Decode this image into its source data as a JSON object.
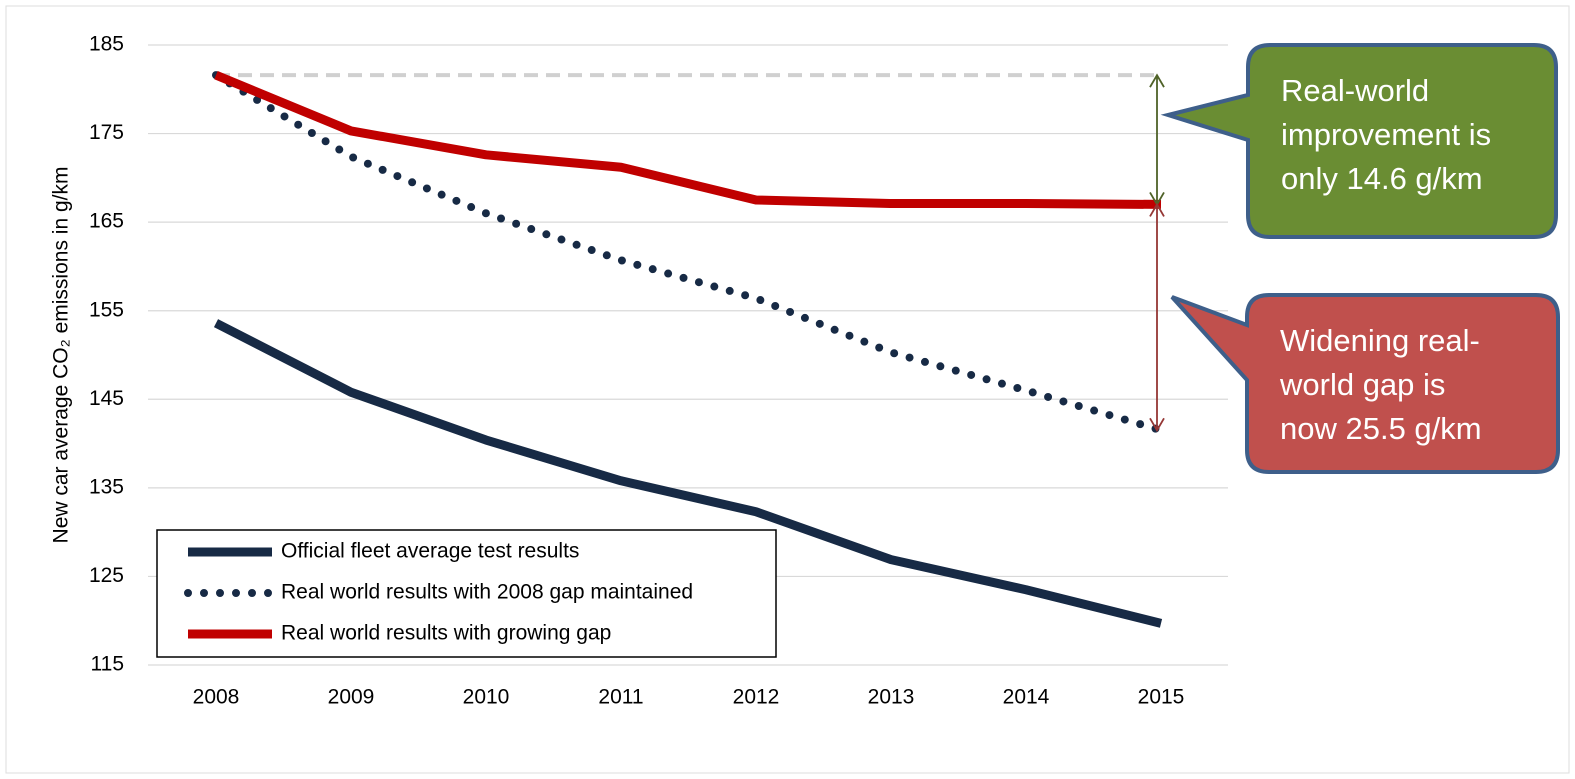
{
  "chart_data": {
    "type": "line",
    "ylabel": "New car average CO₂ emissions in g/km",
    "categories": [
      "2008",
      "2009",
      "2010",
      "2011",
      "2012",
      "2013",
      "2014",
      "2015"
    ],
    "series": [
      {
        "name": "Official fleet average test results",
        "color": "#172a45",
        "style": "solid",
        "values": [
          153.6,
          145.8,
          140.4,
          135.8,
          132.3,
          126.9,
          123.5,
          119.7
        ]
      },
      {
        "name": "Real world results with 2008 gap maintained",
        "color": "#172a45",
        "style": "dotted",
        "values": [
          181.6,
          172.4,
          166.0,
          160.7,
          156.4,
          150.3,
          146.0,
          141.5
        ]
      },
      {
        "name": "Real world results with growing gap",
        "color": "#c00000",
        "style": "solid",
        "values": [
          181.6,
          175.3,
          172.6,
          171.2,
          167.5,
          167.1,
          167.1,
          167.0
        ]
      }
    ],
    "reference_line": 181.6,
    "ylim": [
      115,
      185
    ],
    "yticks": [
      115,
      125,
      135,
      145,
      155,
      165,
      175,
      185
    ],
    "grid": true,
    "legend": "lower left",
    "annotations": [
      {
        "text": "Real-world improvement is only 14.6 g/km",
        "color": "#6a8d33"
      },
      {
        "text": "Widening real-world gap is now 25.5 g/km",
        "color": "#c0504d"
      }
    ]
  }
}
